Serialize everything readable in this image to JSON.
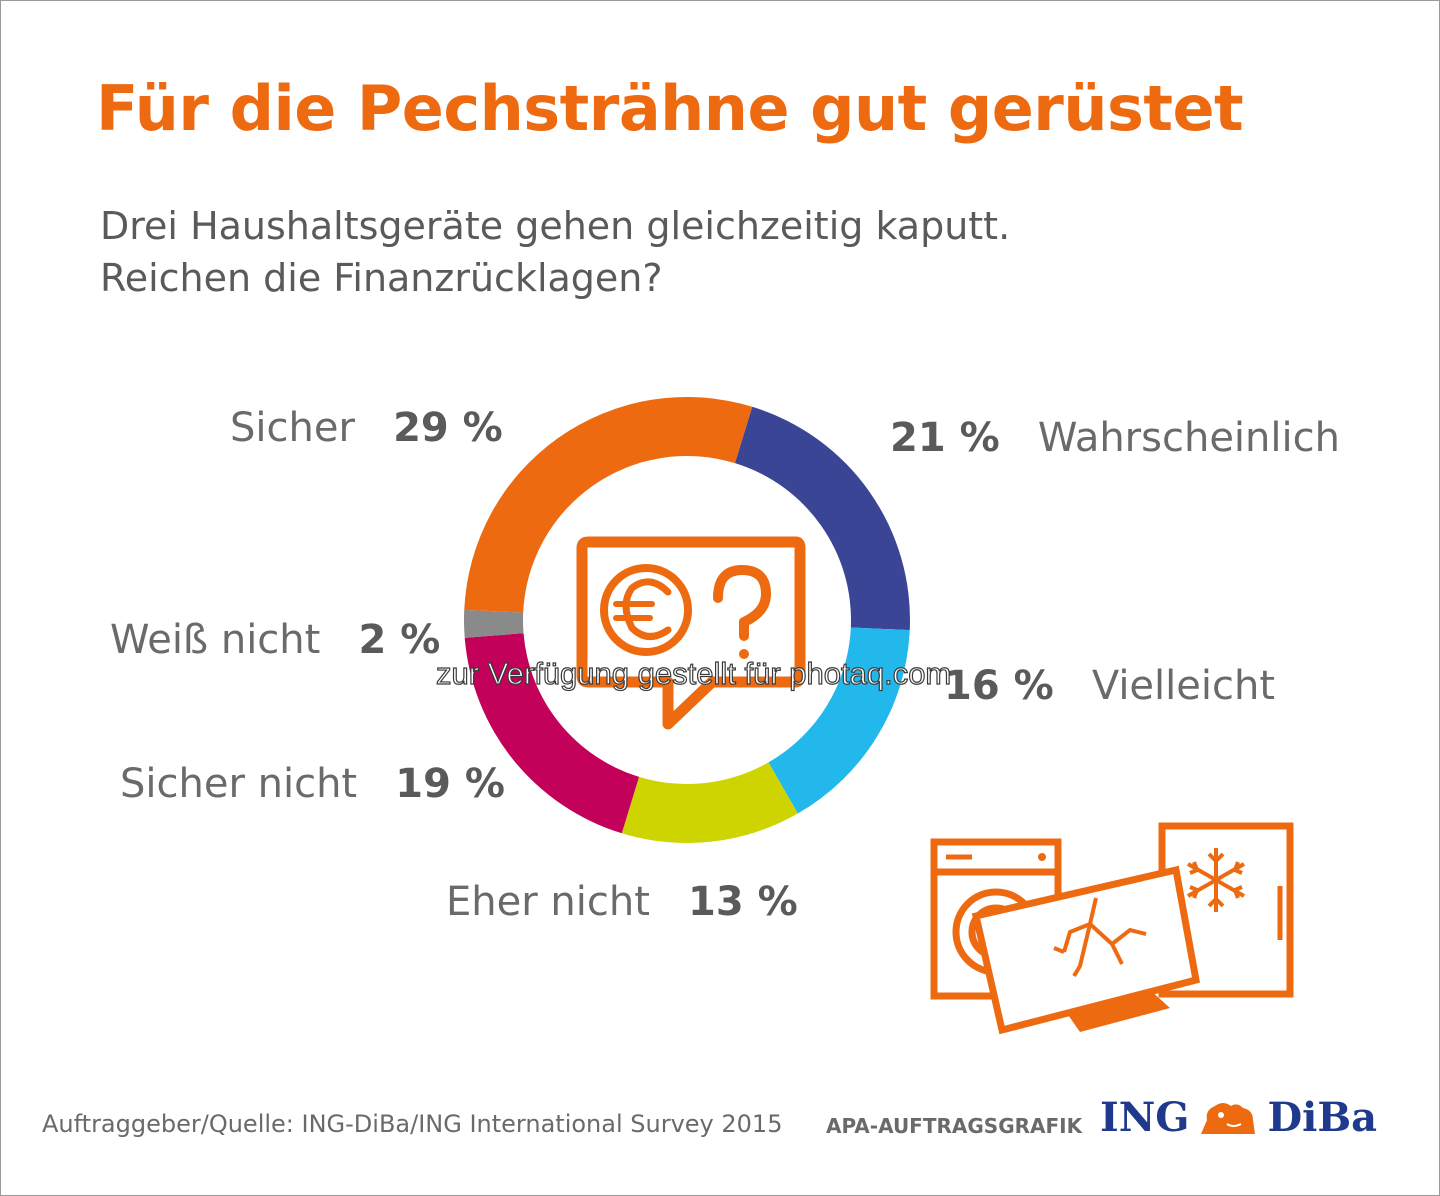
{
  "header": {
    "title": "Für die Pechsträhne gut gerüstet",
    "subtitle_line1": "Drei Haushaltsgeräte gehen gleichzeitig kaputt.",
    "subtitle_line2": "Reichen die Finanzrücklagen?"
  },
  "chart_data": {
    "type": "pie",
    "style": "donut",
    "categories": [
      "Wahrscheinlich",
      "Vielleicht",
      "Eher nicht",
      "Sicher nicht",
      "Weiß nicht",
      "Sicher"
    ],
    "values": [
      21,
      16,
      13,
      19,
      2,
      29
    ],
    "value_labels": [
      "21 %",
      "16 %",
      "13 %",
      "19 %",
      "2 %",
      "29 %"
    ],
    "colors": [
      "#3a4595",
      "#22b8ec",
      "#cdd400",
      "#c3005a",
      "#8a8a8a",
      "#ee6a10"
    ],
    "center_icon": "speech-bubble-euro-question-icon"
  },
  "illustration": {
    "icon": "broken-appliances-icon",
    "color": "#ee6a10"
  },
  "footer": {
    "source": "Auftraggeber/Quelle: ING-DiBa/ING International Survey 2015",
    "agency": "APA-AUFTRAGSGRAFIK",
    "brand_left": "ING",
    "brand_right": "DiBa",
    "brand_icon": "lion-icon"
  },
  "watermark": "zur Verfügung gestellt für photaq.com"
}
